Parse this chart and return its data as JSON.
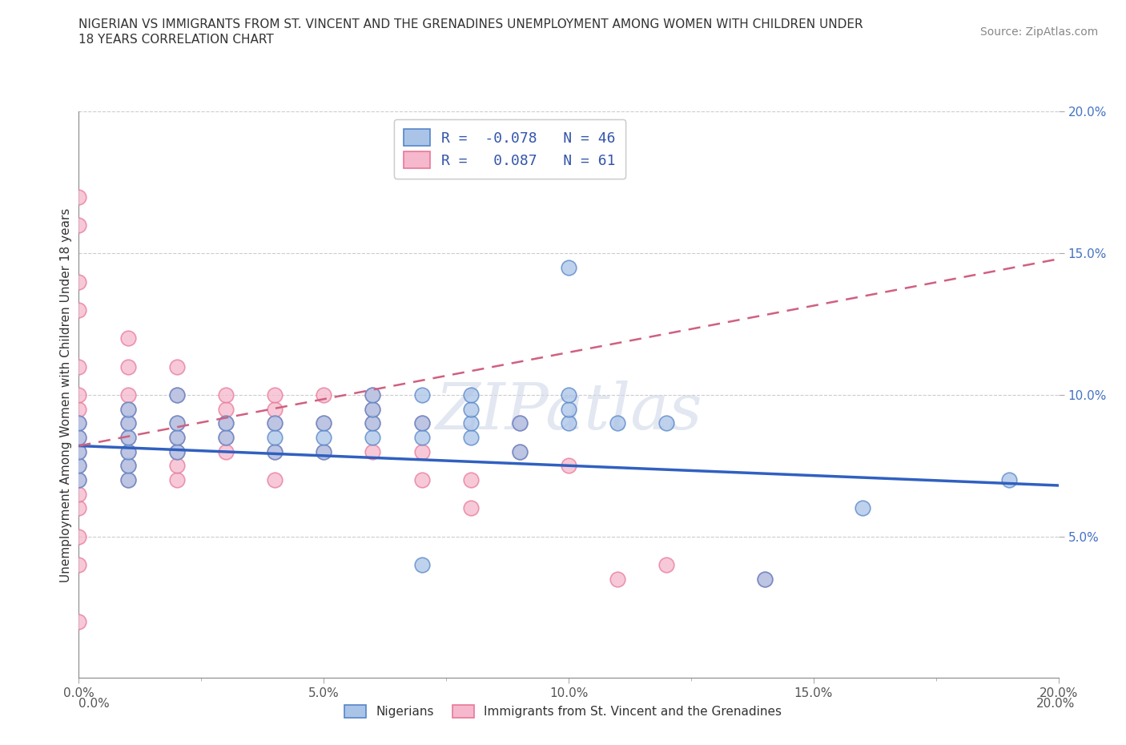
{
  "title_line1": "NIGERIAN VS IMMIGRANTS FROM ST. VINCENT AND THE GRENADINES UNEMPLOYMENT AMONG WOMEN WITH CHILDREN UNDER",
  "title_line2": "18 YEARS CORRELATION CHART",
  "source": "Source: ZipAtlas.com",
  "ylabel": "Unemployment Among Women with Children Under 18 years",
  "xlim": [
    0.0,
    0.2
  ],
  "ylim": [
    0.0,
    0.2
  ],
  "xticks": [
    0.0,
    0.025,
    0.05,
    0.075,
    0.1,
    0.125,
    0.15,
    0.175,
    0.2
  ],
  "yticks": [
    0.05,
    0.1,
    0.15,
    0.2
  ],
  "xticklabels_major": [
    "0.0%",
    "5.0%",
    "10.0%",
    "15.0%",
    "20.0%"
  ],
  "xticks_major": [
    0.0,
    0.05,
    0.1,
    0.15,
    0.2
  ],
  "yticklabels": [
    "5.0%",
    "10.0%",
    "15.0%",
    "20.0%"
  ],
  "nigerian_R": -0.078,
  "nigerian_N": 46,
  "svg_R": 0.087,
  "svg_N": 61,
  "nigerian_color": "#aac4e8",
  "svg_color": "#f5b8cc",
  "nigerian_edge_color": "#5585c8",
  "svg_edge_color": "#e87898",
  "nigerian_line_color": "#3060c0",
  "svg_line_color": "#d06080",
  "legend_label1": "Nigerians",
  "legend_label2": "Immigrants from St. Vincent and the Grenadines",
  "watermark": "ZIPatlas",
  "nigerian_x": [
    0.0,
    0.0,
    0.0,
    0.0,
    0.0,
    0.01,
    0.01,
    0.01,
    0.01,
    0.01,
    0.01,
    0.02,
    0.02,
    0.02,
    0.02,
    0.03,
    0.03,
    0.04,
    0.04,
    0.04,
    0.05,
    0.05,
    0.05,
    0.06,
    0.06,
    0.06,
    0.06,
    0.07,
    0.07,
    0.07,
    0.07,
    0.08,
    0.08,
    0.08,
    0.08,
    0.09,
    0.09,
    0.1,
    0.1,
    0.1,
    0.1,
    0.11,
    0.12,
    0.14,
    0.16,
    0.19
  ],
  "nigerian_y": [
    0.07,
    0.075,
    0.08,
    0.085,
    0.09,
    0.07,
    0.075,
    0.08,
    0.085,
    0.09,
    0.095,
    0.08,
    0.085,
    0.09,
    0.1,
    0.085,
    0.09,
    0.08,
    0.085,
    0.09,
    0.08,
    0.085,
    0.09,
    0.085,
    0.09,
    0.095,
    0.1,
    0.04,
    0.085,
    0.09,
    0.1,
    0.085,
    0.09,
    0.095,
    0.1,
    0.08,
    0.09,
    0.09,
    0.095,
    0.1,
    0.145,
    0.09,
    0.09,
    0.035,
    0.06,
    0.07
  ],
  "svg_x": [
    0.0,
    0.0,
    0.0,
    0.0,
    0.0,
    0.0,
    0.0,
    0.0,
    0.0,
    0.0,
    0.0,
    0.0,
    0.0,
    0.0,
    0.0,
    0.0,
    0.0,
    0.01,
    0.01,
    0.01,
    0.01,
    0.01,
    0.01,
    0.01,
    0.01,
    0.01,
    0.02,
    0.02,
    0.02,
    0.02,
    0.02,
    0.02,
    0.02,
    0.03,
    0.03,
    0.03,
    0.03,
    0.03,
    0.04,
    0.04,
    0.04,
    0.04,
    0.04,
    0.05,
    0.05,
    0.05,
    0.06,
    0.06,
    0.06,
    0.06,
    0.07,
    0.07,
    0.07,
    0.08,
    0.08,
    0.09,
    0.09,
    0.1,
    0.11,
    0.12,
    0.14
  ],
  "svg_y": [
    0.02,
    0.04,
    0.05,
    0.06,
    0.065,
    0.07,
    0.075,
    0.08,
    0.085,
    0.09,
    0.095,
    0.1,
    0.11,
    0.13,
    0.14,
    0.16,
    0.17,
    0.07,
    0.075,
    0.08,
    0.085,
    0.09,
    0.095,
    0.1,
    0.11,
    0.12,
    0.07,
    0.075,
    0.08,
    0.085,
    0.09,
    0.1,
    0.11,
    0.08,
    0.085,
    0.09,
    0.095,
    0.1,
    0.07,
    0.08,
    0.09,
    0.095,
    0.1,
    0.08,
    0.09,
    0.1,
    0.08,
    0.09,
    0.095,
    0.1,
    0.07,
    0.08,
    0.09,
    0.06,
    0.07,
    0.08,
    0.09,
    0.075,
    0.035,
    0.04,
    0.035
  ],
  "nig_line_x0": 0.0,
  "nig_line_x1": 0.2,
  "nig_line_y0": 0.082,
  "nig_line_y1": 0.068,
  "svg_line_x0": 0.0,
  "svg_line_x1": 0.2,
  "svg_line_y0": 0.082,
  "svg_line_y1": 0.148
}
